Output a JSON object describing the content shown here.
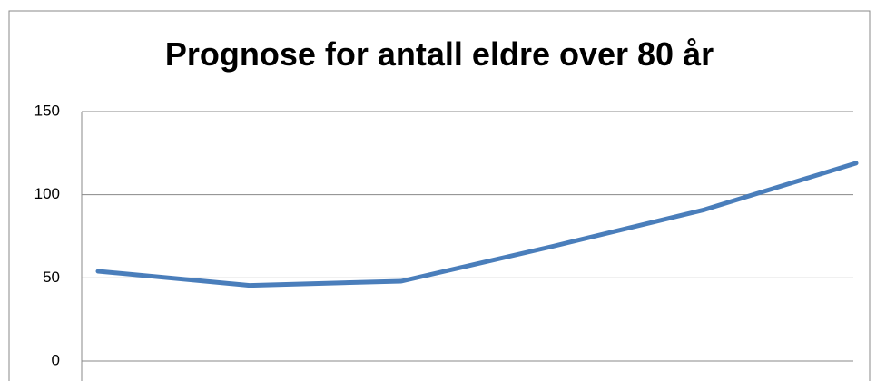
{
  "chart_data": {
    "type": "line",
    "title": "Prognose for antall eldre over 80 år",
    "categories": [
      null,
      null,
      null,
      null,
      null,
      null
    ],
    "series": [
      {
        "name": null,
        "color": "#4a7ebb",
        "values": [
          54,
          45.5,
          48,
          69,
          91,
          119
        ]
      }
    ],
    "ylim": [
      0,
      150
    ],
    "yticks": [
      0,
      50,
      100,
      150
    ],
    "grid": true
  }
}
